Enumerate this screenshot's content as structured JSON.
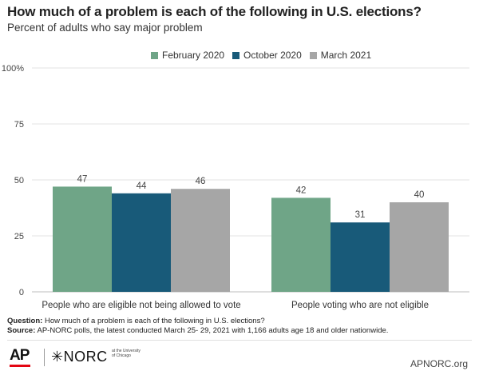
{
  "header": {
    "title": "How much of a problem is each of the following in U.S. elections?",
    "subtitle": "Percent of adults who say major problem"
  },
  "chart_data": {
    "type": "bar",
    "categories": [
      "People who are eligible not being allowed to vote",
      "People voting who are not eligible"
    ],
    "series": [
      {
        "name": "February 2020",
        "values": [
          47,
          42
        ],
        "color": "#6fa587"
      },
      {
        "name": "October 2020",
        "values": [
          44,
          31
        ],
        "color": "#185a79"
      },
      {
        "name": "March 2021",
        "values": [
          46,
          40
        ],
        "color": "#a6a6a6"
      }
    ],
    "ylim": [
      0,
      100
    ],
    "yticks": [
      "0",
      "25",
      "50",
      "75",
      "100%"
    ],
    "ytick_values": [
      0,
      25,
      50,
      75,
      100
    ],
    "grid": true,
    "legend_position": "top-center",
    "data_labels": true
  },
  "notes": {
    "question_label": "Question:",
    "question_text": " How much of a problem is each of the following in U.S. elections?",
    "source_label": "Source:",
    "source_text": " AP-NORC polls, the latest conducted March 25- 29, 2021 with 1,166 adults age 18 and older nationwide."
  },
  "footer": {
    "ap_logo": "AP",
    "norc_logo": "✳NORC",
    "norc_sub": "at the University of Chicago",
    "site": "APNORC.org"
  }
}
